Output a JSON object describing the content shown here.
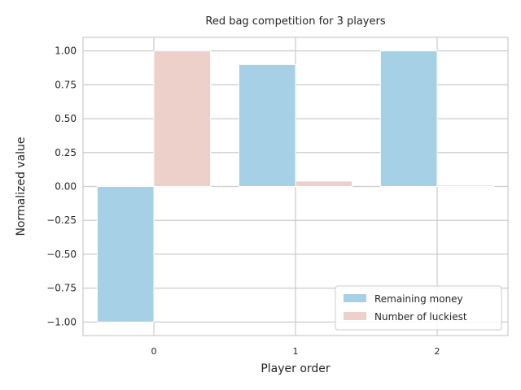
{
  "chart_data": {
    "type": "bar",
    "title": "Red bag competition for 3 players",
    "xlabel": "Player order",
    "ylabel": "Normalized value",
    "categories": [
      "0",
      "1",
      "2"
    ],
    "series": [
      {
        "name": "Remaining money",
        "values": [
          -1.0,
          0.9,
          1.0
        ],
        "color": "#a6d0e6"
      },
      {
        "name": "Number of luckiest",
        "values": [
          1.0,
          0.04,
          0.01
        ],
        "color": "#ecd0c9"
      }
    ],
    "ylim": [
      -1.1,
      1.1
    ],
    "yticks": [
      -1.0,
      -0.75,
      -0.5,
      -0.25,
      0.0,
      0.25,
      0.5,
      0.75,
      1.0
    ],
    "ytick_labels": [
      "−1.00",
      "−0.75",
      "−0.50",
      "−0.25",
      "0.00",
      "0.25",
      "0.50",
      "0.75",
      "1.00"
    ],
    "grid": true,
    "legend_position": "lower-right"
  }
}
